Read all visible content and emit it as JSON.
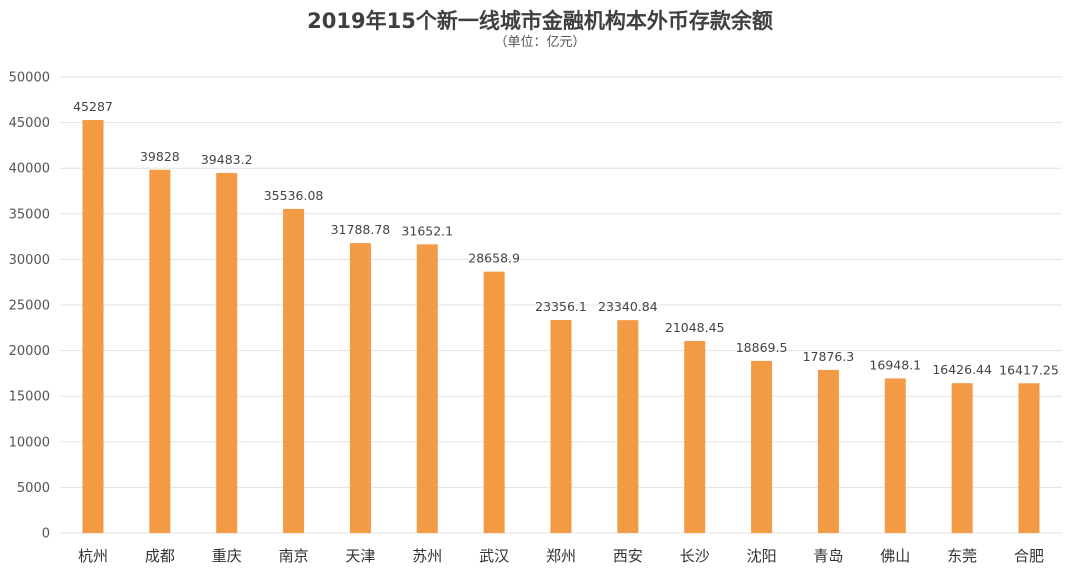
{
  "chart_data": {
    "type": "bar",
    "title": "2019年15个新一线城市金融机构本外币存款余额",
    "subtitle": "（单位：亿元）",
    "categories": [
      "杭州",
      "成都",
      "重庆",
      "南京",
      "天津",
      "苏州",
      "武汉",
      "郑州",
      "西安",
      "长沙",
      "沈阳",
      "青岛",
      "佛山",
      "东莞",
      "合肥"
    ],
    "values": [
      45287,
      39828,
      39483.2,
      35536.08,
      31788.78,
      31652.1,
      28658.9,
      23356.1,
      23340.84,
      21048.45,
      18869.5,
      17876.3,
      16948.1,
      16426.44,
      16417.25
    ],
    "value_labels": [
      "45287",
      "39828",
      "39483.2",
      "35536.08",
      "31788.78",
      "31652.1",
      "28658.9",
      "23356.1",
      "23340.84",
      "21048.45",
      "18869.5",
      "17876.3",
      "16948.1",
      "16426.44",
      "16417.25"
    ],
    "y_ticks": [
      "0",
      "5000",
      "10000",
      "15000",
      "20000",
      "25000",
      "30000",
      "35000",
      "40000",
      "45000",
      "50000"
    ],
    "ylim": [
      0,
      50000
    ],
    "grid": true,
    "bar_color": "#F39A45",
    "grid_color": "#E3E3E3"
  }
}
